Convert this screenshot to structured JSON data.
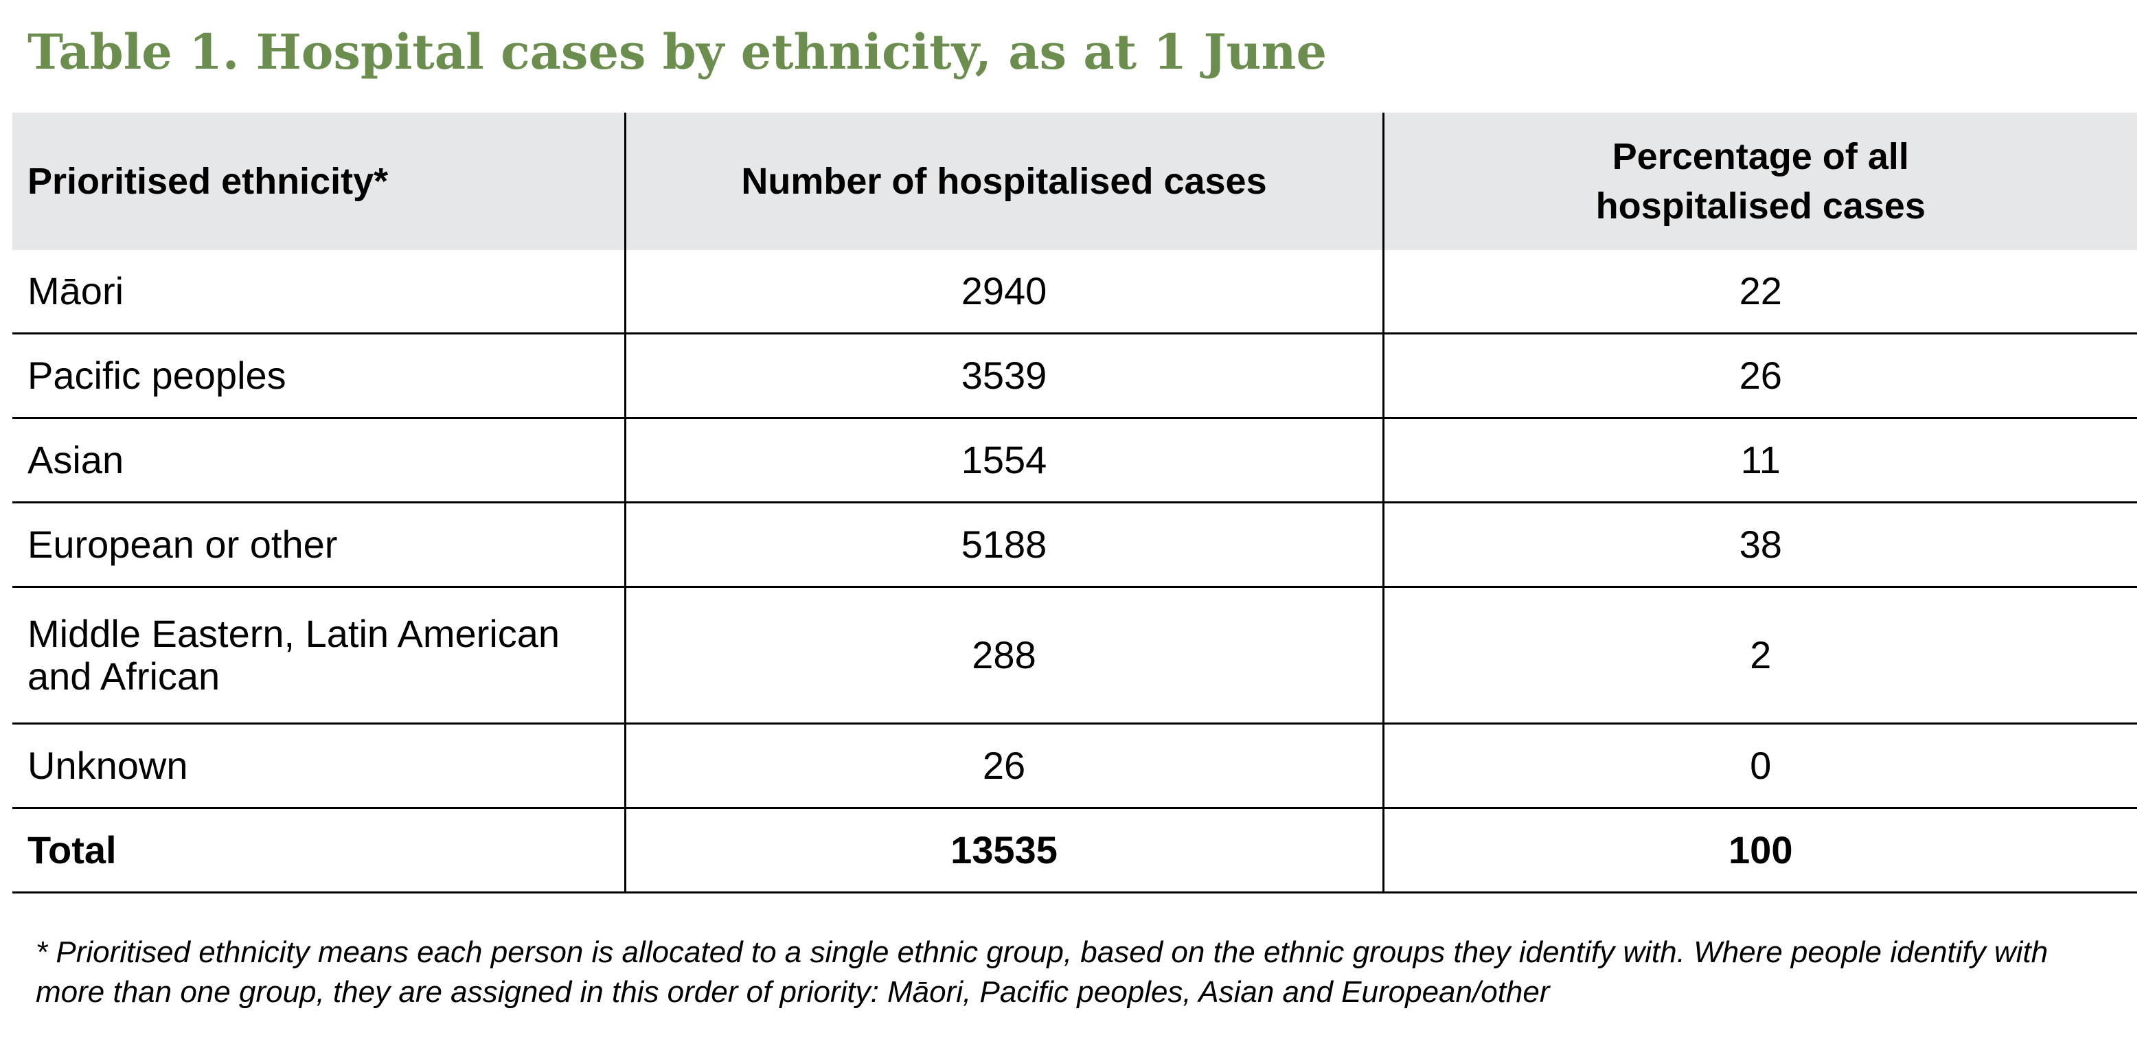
{
  "title": "Table 1. Hospital cases by ethnicity, as at 1 June",
  "table": {
    "headers": [
      "Prioritised ethnicity*",
      "Number of hospitalised cases",
      "Percentage of all hospitalised cases"
    ],
    "rows": [
      {
        "ethnicity": "Māori",
        "cases": "2940",
        "percentage": "22"
      },
      {
        "ethnicity": "Pacific peoples",
        "cases": "3539",
        "percentage": "26"
      },
      {
        "ethnicity": "Asian",
        "cases": "1554",
        "percentage": "11"
      },
      {
        "ethnicity": "European or other",
        "cases": "5188",
        "percentage": "38"
      },
      {
        "ethnicity": "Middle Eastern, Latin American and African",
        "cases": "288",
        "percentage": "2"
      },
      {
        "ethnicity": "Unknown",
        "cases": "26",
        "percentage": "0"
      }
    ],
    "total": {
      "label": "Total",
      "cases": "13535",
      "percentage": "100"
    }
  },
  "footnote": "* Prioritised ethnicity means each person is allocated to a single ethnic group, based on the ethnic groups they identify with. Where people identify with more than one group, they are assigned in this order of priority: Māori, Pacific peoples, Asian and European/other",
  "colors": {
    "title": "#6b8e4e",
    "header_background": "#e6e7e9",
    "rule": "#000000"
  }
}
